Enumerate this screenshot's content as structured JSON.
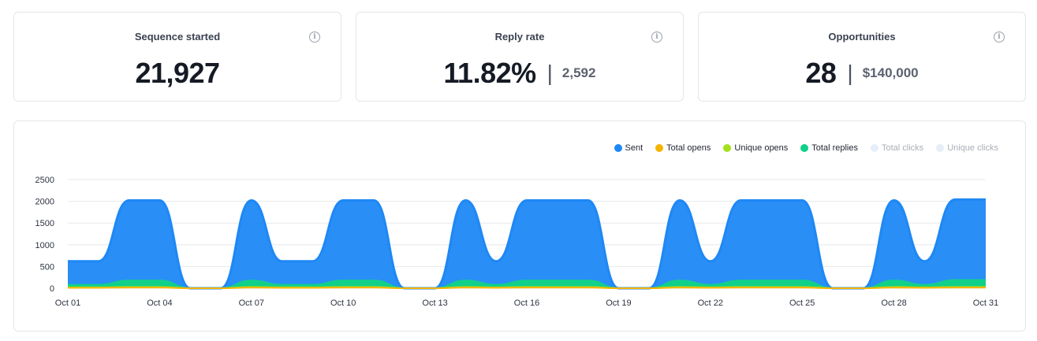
{
  "stats": {
    "sequence_started": {
      "title": "Sequence started",
      "value": "21,927"
    },
    "reply_rate": {
      "title": "Reply rate",
      "value": "11.82%",
      "sep": "|",
      "sub": "2,592"
    },
    "opportunities": {
      "title": "Opportunities",
      "value": "28",
      "sep": "|",
      "sub": "$140,000"
    },
    "info_glyph": "i"
  },
  "legend": [
    {
      "name": "Sent",
      "color": "#1e88f5",
      "active": true
    },
    {
      "name": "Total opens",
      "color": "#f5b400",
      "active": true
    },
    {
      "name": "Unique opens",
      "color": "#a4e01c",
      "active": true
    },
    {
      "name": "Total replies",
      "color": "#10d08a",
      "active": true
    },
    {
      "name": "Total clicks",
      "color": "#e6eef7",
      "active": false
    },
    {
      "name": "Unique clicks",
      "color": "#e6eef7",
      "active": false
    }
  ],
  "chart_data": {
    "type": "area",
    "x": [
      "Oct 01",
      "Oct 02",
      "Oct 03",
      "Oct 04",
      "Oct 05",
      "Oct 06",
      "Oct 07",
      "Oct 08",
      "Oct 09",
      "Oct 10",
      "Oct 11",
      "Oct 12",
      "Oct 13",
      "Oct 14",
      "Oct 15",
      "Oct 16",
      "Oct 17",
      "Oct 18",
      "Oct 19",
      "Oct 20",
      "Oct 21",
      "Oct 22",
      "Oct 23",
      "Oct 24",
      "Oct 25",
      "Oct 26",
      "Oct 27",
      "Oct 28",
      "Oct 29",
      "Oct 30",
      "Oct 31"
    ],
    "x_tick_labels": [
      "Oct 01",
      "Oct 04",
      "Oct 07",
      "Oct 10",
      "Oct 13",
      "Oct 16",
      "Oct 19",
      "Oct 22",
      "Oct 25",
      "Oct 28",
      "Oct 31"
    ],
    "y_ticks": [
      0,
      500,
      1000,
      1500,
      2000,
      2500
    ],
    "ylim": [
      0,
      2500
    ],
    "grid": true,
    "legend_position": "top-right",
    "series": [
      {
        "name": "Sent",
        "color": "#1e88f5",
        "values": [
          620,
          620,
          2020,
          2020,
          0,
          0,
          2020,
          620,
          620,
          2020,
          2020,
          0,
          0,
          2020,
          620,
          2020,
          2020,
          2020,
          0,
          0,
          2020,
          620,
          2020,
          2020,
          2020,
          0,
          0,
          2020,
          620,
          2040,
          2040
        ]
      },
      {
        "name": "Total replies",
        "color": "#10d08a",
        "values": [
          80,
          80,
          180,
          180,
          0,
          0,
          180,
          80,
          80,
          180,
          180,
          0,
          0,
          180,
          80,
          180,
          180,
          180,
          0,
          0,
          180,
          80,
          180,
          180,
          180,
          0,
          0,
          180,
          80,
          190,
          190
        ]
      },
      {
        "name": "Unique opens",
        "color": "#a4e01c",
        "values": [
          20,
          20,
          30,
          30,
          0,
          0,
          30,
          20,
          20,
          30,
          30,
          0,
          0,
          30,
          20,
          30,
          30,
          30,
          0,
          0,
          30,
          20,
          30,
          30,
          30,
          0,
          0,
          30,
          20,
          30,
          30
        ]
      },
      {
        "name": "Total opens",
        "color": "#f5b400",
        "values": [
          10,
          10,
          15,
          15,
          0,
          0,
          15,
          10,
          10,
          15,
          15,
          0,
          0,
          15,
          10,
          15,
          15,
          15,
          0,
          0,
          15,
          10,
          15,
          15,
          15,
          0,
          0,
          15,
          10,
          15,
          15
        ]
      }
    ]
  }
}
